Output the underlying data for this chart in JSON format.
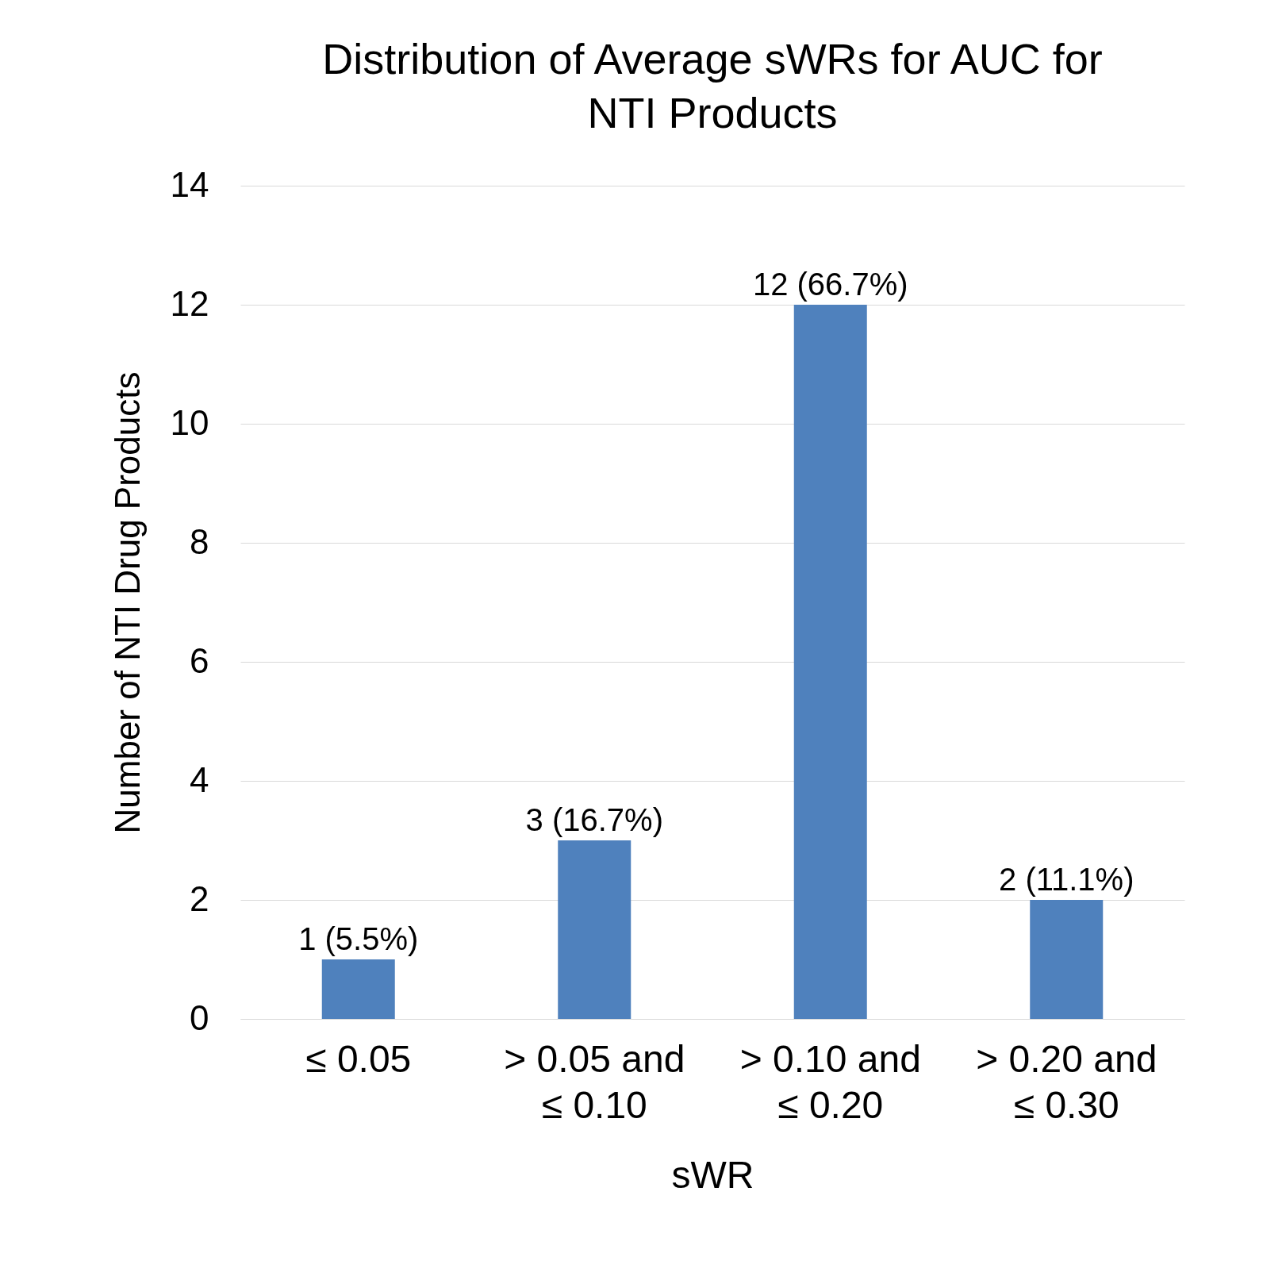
{
  "chart_data": {
    "type": "bar",
    "title": "Distribution of Average sWRs for AUC for NTI Products",
    "xlabel": "sWR",
    "ylabel": "Number of NTI Drug Products",
    "categories": [
      "≤ 0.05",
      "> 0.05 and ≤ 0.10",
      "> 0.10 and ≤ 0.20",
      "> 0.20 and ≤ 0.30"
    ],
    "values": [
      1,
      3,
      12,
      2
    ],
    "color": "#4f81bd",
    "value_labels": [
      "1 (5.5%)",
      "3 (16.7%)",
      "12 (66.7%)",
      "2 (11.1%)"
    ],
    "ylim": [
      0,
      14
    ],
    "yticks": [
      0,
      2,
      4,
      6,
      8,
      10,
      12,
      14
    ],
    "grid": "y"
  }
}
